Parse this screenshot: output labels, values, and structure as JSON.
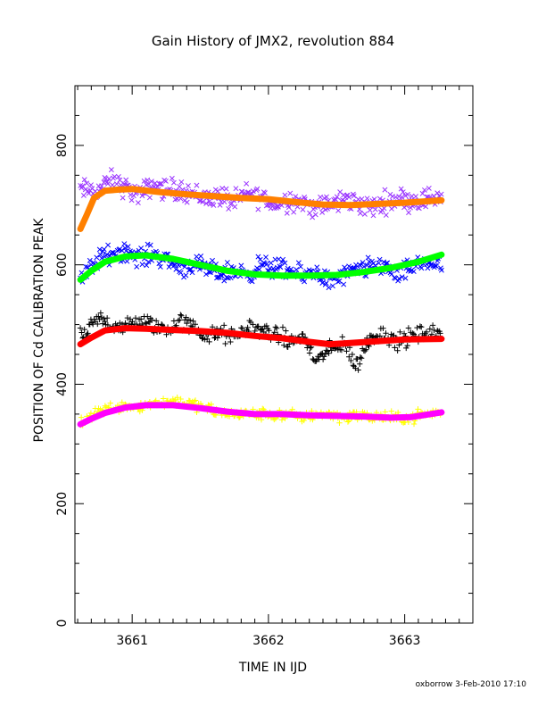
{
  "chart_data": {
    "type": "scatter",
    "title": "Gain History of JMX2, revolution 884",
    "xlabel": "TIME IN IJD",
    "ylabel": "POSITION OF Cd CALIBRATION PEAK",
    "xlim": [
      3660.58,
      3663.5
    ],
    "ylim": [
      0,
      900
    ],
    "xticks": [
      3661,
      3662,
      3663
    ],
    "yticks": [
      0,
      200,
      400,
      600,
      800
    ],
    "grid": false,
    "x_range": [
      3660.62,
      3663.27
    ],
    "series": [
      {
        "marker": "x",
        "color": "#9933ff",
        "points": [
          [
            3660.75,
            725
          ],
          [
            3660.85,
            740
          ],
          [
            3660.95,
            730
          ],
          [
            3661.05,
            715
          ],
          [
            3661.15,
            735
          ],
          [
            3661.25,
            725
          ],
          [
            3661.35,
            728
          ],
          [
            3661.45,
            718
          ],
          [
            3661.55,
            712
          ],
          [
            3661.65,
            715
          ],
          [
            3661.75,
            705
          ],
          [
            3661.85,
            720
          ],
          [
            3661.95,
            712
          ],
          [
            3662.05,
            700
          ],
          [
            3662.15,
            710
          ],
          [
            3662.25,
            705
          ],
          [
            3662.35,
            695
          ],
          [
            3662.45,
            700
          ],
          [
            3662.55,
            710
          ],
          [
            3662.65,
            705
          ],
          [
            3662.75,
            695
          ],
          [
            3662.85,
            705
          ],
          [
            3662.95,
            712
          ],
          [
            3663.05,
            708
          ],
          [
            3663.15,
            710
          ],
          [
            3663.25,
            715
          ]
        ],
        "scatter": 22,
        "style": "x"
      },
      {
        "marker": "line",
        "color": "#ff8000",
        "points": [
          [
            3660.62,
            660
          ],
          [
            3660.67,
            685
          ],
          [
            3660.72,
            712
          ],
          [
            3660.8,
            724
          ],
          [
            3660.9,
            726
          ],
          [
            3661.0,
            727
          ],
          [
            3661.2,
            722
          ],
          [
            3661.4,
            718
          ],
          [
            3661.6,
            715
          ],
          [
            3661.8,
            712
          ],
          [
            3662.0,
            710
          ],
          [
            3662.2,
            705
          ],
          [
            3662.4,
            701
          ],
          [
            3662.6,
            700
          ],
          [
            3662.8,
            702
          ],
          [
            3663.0,
            704
          ],
          [
            3663.27,
            708
          ]
        ],
        "style": "line"
      },
      {
        "marker": "x",
        "color": "#0000ff",
        "points": [
          [
            3660.65,
            580
          ],
          [
            3660.75,
            610
          ],
          [
            3660.85,
            620
          ],
          [
            3660.95,
            625
          ],
          [
            3661.05,
            612
          ],
          [
            3661.15,
            618
          ],
          [
            3661.25,
            610
          ],
          [
            3661.35,
            595
          ],
          [
            3661.45,
            600
          ],
          [
            3661.55,
            592
          ],
          [
            3661.65,
            585
          ],
          [
            3661.75,
            590
          ],
          [
            3661.85,
            585
          ],
          [
            3661.95,
            600
          ],
          [
            3662.05,
            595
          ],
          [
            3662.15,
            590
          ],
          [
            3662.25,
            580
          ],
          [
            3662.35,
            590
          ],
          [
            3662.45,
            570
          ],
          [
            3662.55,
            582
          ],
          [
            3662.65,
            590
          ],
          [
            3662.75,
            595
          ],
          [
            3662.85,
            600
          ],
          [
            3662.95,
            580
          ],
          [
            3663.05,
            595
          ],
          [
            3663.15,
            605
          ],
          [
            3663.25,
            600
          ]
        ],
        "scatter": 20,
        "style": "x"
      },
      {
        "marker": "line",
        "color": "#00ff00",
        "points": [
          [
            3660.62,
            575
          ],
          [
            3660.7,
            590
          ],
          [
            3660.8,
            605
          ],
          [
            3660.95,
            614
          ],
          [
            3661.1,
            616
          ],
          [
            3661.3,
            610
          ],
          [
            3661.5,
            600
          ],
          [
            3661.7,
            590
          ],
          [
            3661.9,
            584
          ],
          [
            3662.1,
            582
          ],
          [
            3662.3,
            582
          ],
          [
            3662.5,
            583
          ],
          [
            3662.7,
            588
          ],
          [
            3662.9,
            595
          ],
          [
            3663.1,
            605
          ],
          [
            3663.27,
            617
          ]
        ],
        "style": "line"
      },
      {
        "marker": "+",
        "color": "#000000",
        "points": [
          [
            3660.65,
            480
          ],
          [
            3660.75,
            510
          ],
          [
            3660.85,
            500
          ],
          [
            3660.95,
            495
          ],
          [
            3661.05,
            505
          ],
          [
            3661.15,
            500
          ],
          [
            3661.25,
            490
          ],
          [
            3661.35,
            505
          ],
          [
            3661.45,
            495
          ],
          [
            3661.55,
            480
          ],
          [
            3661.65,
            485
          ],
          [
            3661.75,
            478
          ],
          [
            3661.85,
            495
          ],
          [
            3661.95,
            490
          ],
          [
            3662.05,
            485
          ],
          [
            3662.15,
            470
          ],
          [
            3662.25,
            480
          ],
          [
            3662.35,
            440
          ],
          [
            3662.45,
            455
          ],
          [
            3662.55,
            470
          ],
          [
            3662.65,
            430
          ],
          [
            3662.75,
            480
          ],
          [
            3662.85,
            485
          ],
          [
            3662.95,
            470
          ],
          [
            3663.05,
            480
          ],
          [
            3663.15,
            485
          ],
          [
            3663.25,
            482
          ]
        ],
        "scatter": 18,
        "style": "plus"
      },
      {
        "marker": "line",
        "color": "#ff0000",
        "points": [
          [
            3660.62,
            467
          ],
          [
            3660.7,
            478
          ],
          [
            3660.8,
            490
          ],
          [
            3660.95,
            494
          ],
          [
            3661.1,
            493
          ],
          [
            3661.3,
            491
          ],
          [
            3661.5,
            489
          ],
          [
            3661.7,
            486
          ],
          [
            3661.9,
            481
          ],
          [
            3662.1,
            477
          ],
          [
            3662.3,
            471
          ],
          [
            3662.45,
            467
          ],
          [
            3662.6,
            469
          ],
          [
            3662.8,
            472
          ],
          [
            3663.0,
            475
          ],
          [
            3663.27,
            476
          ]
        ],
        "style": "line"
      },
      {
        "marker": "+",
        "color": "#ffff00",
        "points": [
          [
            3660.65,
            340
          ],
          [
            3660.75,
            355
          ],
          [
            3660.85,
            360
          ],
          [
            3660.95,
            365
          ],
          [
            3661.05,
            362
          ],
          [
            3661.15,
            368
          ],
          [
            3661.25,
            370
          ],
          [
            3661.35,
            372
          ],
          [
            3661.45,
            365
          ],
          [
            3661.55,
            358
          ],
          [
            3661.65,
            352
          ],
          [
            3661.75,
            350
          ],
          [
            3661.85,
            350
          ],
          [
            3661.95,
            350
          ],
          [
            3662.05,
            348
          ],
          [
            3662.15,
            348
          ],
          [
            3662.25,
            345
          ],
          [
            3662.35,
            350
          ],
          [
            3662.45,
            350
          ],
          [
            3662.55,
            345
          ],
          [
            3662.65,
            348
          ],
          [
            3662.75,
            345
          ],
          [
            3662.85,
            345
          ],
          [
            3662.95,
            342
          ],
          [
            3663.05,
            345
          ],
          [
            3663.15,
            350
          ],
          [
            3663.25,
            352
          ]
        ],
        "scatter": 12,
        "style": "plus"
      },
      {
        "marker": "line",
        "color": "#ff00ff",
        "points": [
          [
            3660.62,
            333
          ],
          [
            3660.7,
            342
          ],
          [
            3660.8,
            352
          ],
          [
            3660.95,
            361
          ],
          [
            3661.1,
            365
          ],
          [
            3661.3,
            365
          ],
          [
            3661.5,
            360
          ],
          [
            3661.7,
            354
          ],
          [
            3661.9,
            350
          ],
          [
            3662.1,
            350
          ],
          [
            3662.3,
            348
          ],
          [
            3662.5,
            347
          ],
          [
            3662.7,
            346
          ],
          [
            3662.9,
            344
          ],
          [
            3663.05,
            345
          ],
          [
            3663.27,
            353
          ]
        ],
        "style": "line"
      }
    ]
  },
  "footer": "oxborrow   3-Feb-2010 17:10"
}
